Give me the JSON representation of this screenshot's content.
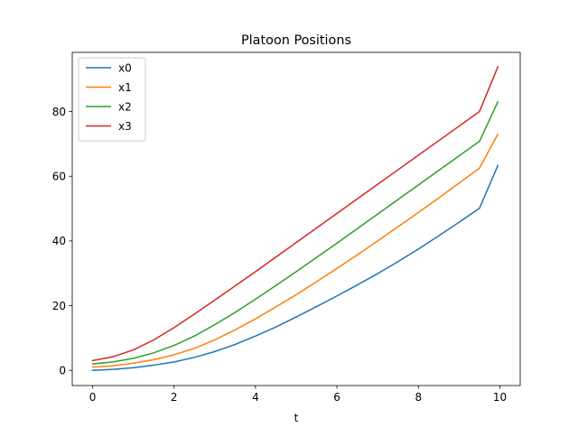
{
  "chart_data": {
    "type": "line",
    "title": "Platoon Positions",
    "xlabel": "t",
    "ylabel": "",
    "xlim": [
      -0.5,
      10.5
    ],
    "ylim": [
      -4.7,
      98.3
    ],
    "x_ticks": [
      0,
      2,
      4,
      6,
      8,
      10
    ],
    "y_ticks": [
      0,
      20,
      40,
      60,
      80
    ],
    "grid": false,
    "legend_position": "top-left",
    "series": [
      {
        "name": "x0",
        "color": "#1f77b4",
        "x": [
          0,
          0.5,
          1,
          1.5,
          2,
          2.5,
          3,
          3.5,
          4,
          4.5,
          5,
          5.5,
          6,
          6.5,
          7,
          7.5,
          8,
          8.5,
          9,
          9.5,
          9.95
        ],
        "y": [
          0,
          0.3,
          0.8,
          1.6,
          2.6,
          4.0,
          5.8,
          8.0,
          10.6,
          13.4,
          16.5,
          19.7,
          23.0,
          26.4,
          29.9,
          33.6,
          37.5,
          41.6,
          45.8,
          50.1,
          63.3
        ]
      },
      {
        "name": "x1",
        "color": "#ff7f0e",
        "x": [
          0,
          0.5,
          1,
          1.5,
          2,
          2.5,
          3,
          3.5,
          4,
          4.5,
          5,
          5.5,
          6,
          6.5,
          7,
          7.5,
          8,
          8.5,
          9,
          9.5,
          9.95
        ],
        "y": [
          1.0,
          1.4,
          2.2,
          3.3,
          4.8,
          6.8,
          9.4,
          12.5,
          15.9,
          19.6,
          23.4,
          27.4,
          31.5,
          35.7,
          40.0,
          44.4,
          48.8,
          53.3,
          57.9,
          62.5,
          73.0
        ]
      },
      {
        "name": "x2",
        "color": "#2ca02c",
        "x": [
          0,
          0.5,
          1,
          1.5,
          2,
          2.5,
          3,
          3.5,
          4,
          4.5,
          5,
          5.5,
          6,
          6.5,
          7,
          7.5,
          8,
          8.5,
          9,
          9.5,
          9.95
        ],
        "y": [
          2.0,
          2.6,
          3.7,
          5.4,
          7.7,
          10.6,
          14.1,
          17.9,
          22.0,
          26.2,
          30.5,
          34.9,
          39.3,
          43.8,
          48.3,
          52.8,
          57.3,
          61.8,
          66.3,
          70.8,
          83.0
        ]
      },
      {
        "name": "x3",
        "color": "#d62728",
        "x": [
          0,
          0.5,
          1,
          1.5,
          2,
          2.5,
          3,
          3.5,
          4,
          4.5,
          5,
          5.5,
          6,
          6.5,
          7,
          7.5,
          8,
          8.5,
          9,
          9.5,
          9.95
        ],
        "y": [
          3.0,
          4.2,
          6.3,
          9.4,
          13.2,
          17.4,
          21.7,
          26.1,
          30.5,
          35.0,
          39.5,
          44.0,
          48.5,
          53.0,
          57.5,
          62.0,
          66.5,
          71.0,
          75.5,
          80.0,
          93.8
        ]
      }
    ]
  }
}
